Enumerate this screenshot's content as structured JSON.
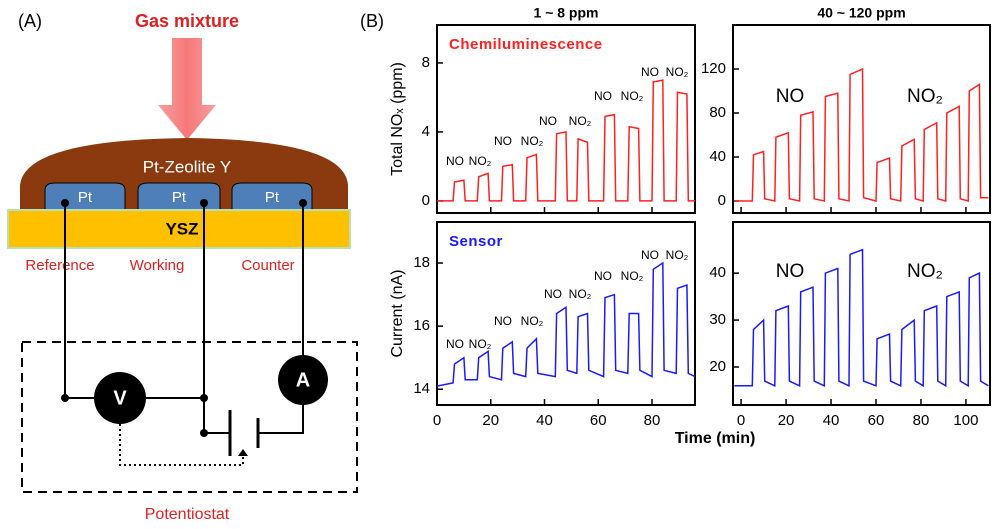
{
  "panel_a": {
    "label": "(A)",
    "gas": "Gas mixture",
    "zeolite": "Pt-Zeolite Y",
    "electrodes": [
      "Pt",
      "Pt",
      "Pt"
    ],
    "substrate": "YSZ",
    "electrode_names": [
      "Reference",
      "Working",
      "Counter"
    ],
    "voltmeter": "V",
    "ammeter": "A",
    "box": "Potentiostat"
  },
  "panel_b": {
    "label": "(B)"
  },
  "chart_data": [
    {
      "type": "line",
      "title": "1 ~ 8 ppm",
      "ylabel": "Total NOₓ (ppm)",
      "xlim": [
        0,
        96
      ],
      "xticks": [
        0,
        20,
        40,
        60,
        80
      ],
      "ylim": [
        -0.7,
        10.2
      ],
      "yticks": [
        0,
        4,
        8
      ],
      "x": [
        0,
        6,
        6.5,
        10,
        10.5,
        15,
        15.5,
        19,
        19.5,
        24,
        24.5,
        28,
        28.5,
        33,
        33.5,
        37,
        37.5,
        44,
        44.5,
        48,
        48.5,
        52,
        52.5,
        56,
        56.5,
        62,
        62.5,
        66,
        66.5,
        71,
        71.5,
        75,
        75.5,
        80,
        80.5,
        84,
        84.5,
        89,
        89.5,
        93,
        93.5,
        96
      ],
      "series": [
        {
          "name": "Chemiluminescence",
          "color": "#ff2020",
          "values": [
            0,
            0,
            1.1,
            1.2,
            0,
            0,
            1.4,
            1.6,
            0,
            0,
            2.0,
            2.1,
            0,
            0,
            2.5,
            2.7,
            0,
            0,
            3.9,
            4.0,
            0,
            0,
            3.6,
            3.4,
            0,
            0,
            4.9,
            5.0,
            0,
            0,
            4.3,
            4.2,
            0,
            0,
            6.9,
            7.0,
            0,
            0,
            6.3,
            6.2,
            0,
            0
          ]
        }
      ],
      "annotations": [
        "NO",
        "NO₂",
        "NO",
        "NO₂",
        "NO",
        "NO₂",
        "NO",
        "NO₂",
        "NO",
        "NO₂"
      ]
    },
    {
      "type": "line",
      "title": "40 ~ 120 ppm",
      "xlim": [
        -3.6,
        110.7
      ],
      "xticks": [
        0,
        20,
        40,
        60,
        80,
        100
      ],
      "ylim": [
        -10.9,
        160
      ],
      "yticks": [
        0,
        40,
        80,
        120
      ],
      "x": [
        -3,
        5,
        5.5,
        10,
        10.5,
        15,
        15.5,
        21,
        21.5,
        26,
        26.5,
        32,
        32.5,
        37,
        37.5,
        43,
        43.5,
        48,
        48.5,
        54,
        54.5,
        60,
        60.5,
        66,
        66.5,
        71,
        71.5,
        77,
        77.5,
        81,
        81.5,
        87,
        87.5,
        91,
        91.5,
        97,
        97.5,
        101,
        101.5,
        106,
        106.5,
        110
      ],
      "series": [
        {
          "color": "#ff2020",
          "values": [
            0,
            0,
            42,
            45,
            2,
            0,
            58,
            62,
            2,
            0,
            78,
            81,
            2,
            0,
            95,
            98,
            2,
            0,
            115,
            120,
            3,
            0,
            35,
            39,
            2,
            0,
            50,
            56,
            2,
            0,
            65,
            71,
            2,
            0,
            80,
            86,
            2,
            0,
            100,
            106,
            3,
            3
          ]
        }
      ],
      "annotations": [
        "NO",
        "NO₂"
      ]
    },
    {
      "type": "line",
      "ylabel": "Current (nA)",
      "xlabel": "Time (min)",
      "xlim": [
        0,
        96
      ],
      "xticks": [
        0,
        20,
        40,
        60,
        80
      ],
      "ylim": [
        13.5,
        19.3
      ],
      "yticks": [
        14,
        16,
        18
      ],
      "x": [
        0,
        6,
        6.5,
        10,
        10.5,
        15,
        15.5,
        19,
        19.5,
        24,
        24.5,
        28,
        28.5,
        33,
        33.5,
        37,
        37.5,
        44,
        44.5,
        48,
        48.5,
        52,
        52.5,
        56,
        56.5,
        62,
        62.5,
        66,
        66.5,
        71,
        71.5,
        75,
        75.5,
        80,
        80.5,
        84,
        84.5,
        89,
        89.5,
        93,
        93.5,
        96
      ],
      "series": [
        {
          "name": "Sensor",
          "color": "#1a1aff",
          "values": [
            14.1,
            14.2,
            14.8,
            15.0,
            14.3,
            14.3,
            15.0,
            15.2,
            14.4,
            14.3,
            15.3,
            15.5,
            14.5,
            14.4,
            15.3,
            15.6,
            14.5,
            14.4,
            16.4,
            16.6,
            14.6,
            14.5,
            16.3,
            16.4,
            14.6,
            14.4,
            16.9,
            17.0,
            14.6,
            14.5,
            16.4,
            16.4,
            14.6,
            14.4,
            17.8,
            18.0,
            14.6,
            14.5,
            17.2,
            17.3,
            14.5,
            14.4
          ]
        }
      ],
      "annotations": [
        "NO",
        "NO₂",
        "NO",
        "NO₂",
        "NO",
        "NO₂",
        "NO",
        "NO₂",
        "NO",
        "NO₂"
      ]
    },
    {
      "type": "line",
      "xlim": [
        -3.6,
        110.7
      ],
      "xticks": [
        0,
        20,
        40,
        60,
        80,
        100
      ],
      "ylim": [
        11.9,
        50.9
      ],
      "yticks": [
        20,
        30,
        40
      ],
      "x": [
        -3,
        5,
        5.5,
        10,
        10.5,
        15,
        15.5,
        21,
        21.5,
        26,
        26.5,
        32,
        32.5,
        37,
        37.5,
        43,
        43.5,
        48,
        48.5,
        54,
        54.5,
        60,
        60.5,
        66,
        66.5,
        71,
        71.5,
        77,
        77.5,
        81,
        81.5,
        87,
        87.5,
        91,
        91.5,
        97,
        97.5,
        101,
        101.5,
        106,
        106.5,
        110
      ],
      "series": [
        {
          "color": "#1a1aff",
          "values": [
            16,
            16,
            28,
            30,
            17,
            16,
            32,
            33,
            17,
            16,
            36,
            37,
            17,
            16,
            40,
            41,
            17,
            16,
            44,
            45,
            17,
            16,
            26,
            27,
            17,
            16,
            28,
            30,
            17,
            16,
            32,
            33,
            17,
            16,
            35,
            36,
            17,
            16,
            39,
            40,
            17,
            16
          ]
        }
      ],
      "annotations": [
        "NO",
        "NO₂"
      ]
    }
  ]
}
